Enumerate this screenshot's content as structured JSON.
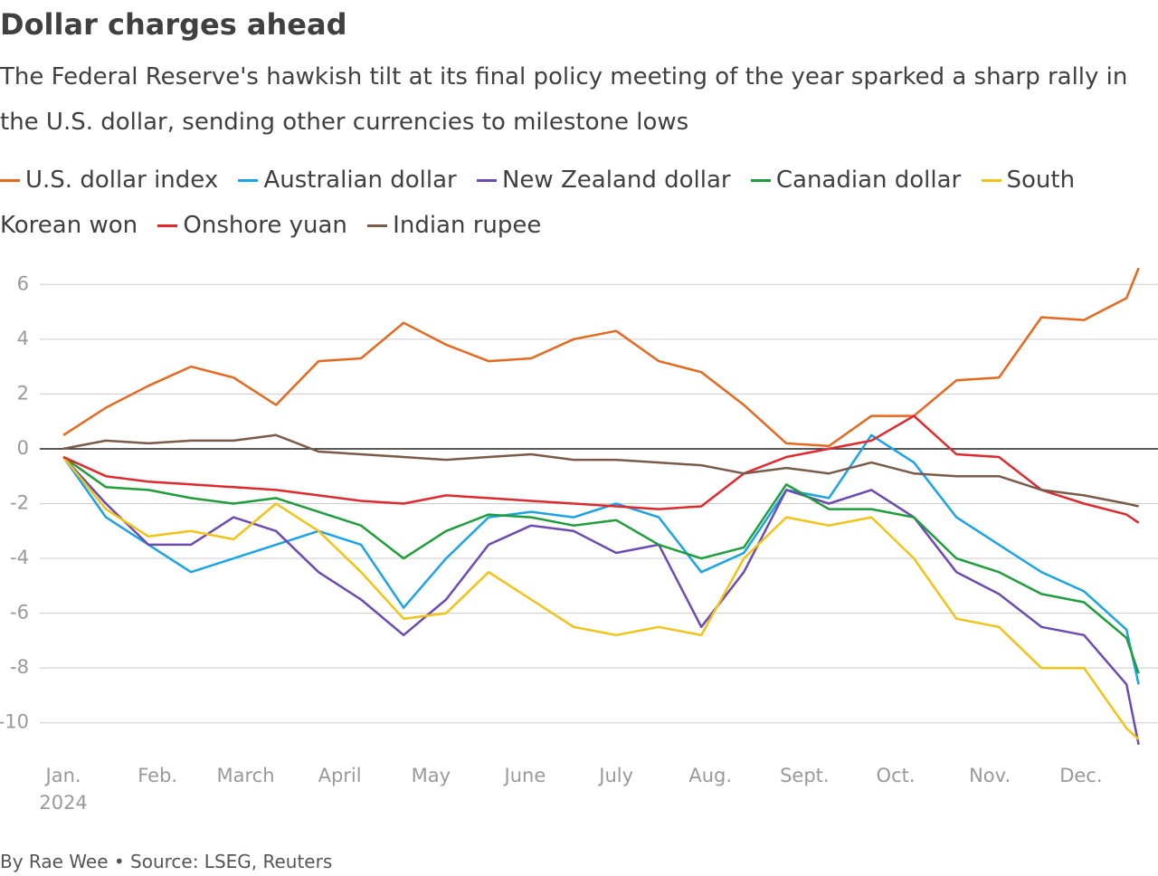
{
  "chart_data": {
    "type": "line",
    "title": "Dollar charges ahead",
    "subtitle": "The Federal Reserve's hawkish tilt at its final policy meeting of the year sparked a sharp rally in the U.S. dollar, sending other currencies to milestone lows",
    "footer": "By Rae Wee • Source: LSEG, Reuters",
    "x_year_label": "2024",
    "x": [
      0,
      14,
      28,
      42,
      56,
      70,
      84,
      98,
      112,
      126,
      140,
      154,
      168,
      182,
      196,
      210,
      224,
      238,
      252,
      266,
      280,
      294,
      308,
      322,
      336,
      350,
      354
    ],
    "xlim": [
      -3,
      355
    ],
    "xticks": [
      {
        "value": 0,
        "label": "Jan."
      },
      {
        "value": 31,
        "label": "Feb."
      },
      {
        "value": 60,
        "label": "March"
      },
      {
        "value": 91,
        "label": "April"
      },
      {
        "value": 121,
        "label": "May"
      },
      {
        "value": 152,
        "label": "June"
      },
      {
        "value": 182,
        "label": "July"
      },
      {
        "value": 213,
        "label": "Aug."
      },
      {
        "value": 244,
        "label": "Sept."
      },
      {
        "value": 274,
        "label": "Oct."
      },
      {
        "value": 305,
        "label": "Nov."
      },
      {
        "value": 335,
        "label": "Dec."
      }
    ],
    "ylim": [
      -11,
      7
    ],
    "yticks": [
      6,
      4,
      2,
      0,
      -2,
      -4,
      -6,
      -8,
      -10
    ],
    "grid": true,
    "series": [
      {
        "name": "U.S. dollar index",
        "color": "#e8671c",
        "values": [
          0.5,
          1.5,
          2.3,
          3.0,
          2.6,
          1.6,
          3.2,
          3.3,
          4.6,
          3.8,
          3.2,
          3.3,
          4.0,
          4.3,
          3.2,
          2.8,
          1.6,
          0.2,
          0.1,
          1.2,
          1.2,
          2.5,
          2.6,
          4.8,
          4.7,
          5.5,
          6.6
        ]
      },
      {
        "name": "Australian dollar",
        "color": "#1aa3e6",
        "values": [
          -0.3,
          -2.5,
          -3.5,
          -4.5,
          -4.0,
          -3.5,
          -3.0,
          -3.5,
          -5.8,
          -4.0,
          -2.5,
          -2.3,
          -2.5,
          -2.0,
          -2.5,
          -4.5,
          -3.8,
          -1.5,
          -1.8,
          0.5,
          -0.5,
          -2.5,
          -3.5,
          -4.5,
          -5.2,
          -6.6,
          -8.6
        ]
      },
      {
        "name": "New Zealand dollar",
        "color": "#6c4ab3",
        "values": [
          -0.3,
          -2.0,
          -3.5,
          -3.5,
          -2.5,
          -3.0,
          -4.5,
          -5.5,
          -6.8,
          -5.5,
          -3.5,
          -2.8,
          -3.0,
          -3.8,
          -3.5,
          -6.5,
          -4.5,
          -1.5,
          -2.0,
          -1.5,
          -2.5,
          -4.5,
          -5.3,
          -6.5,
          -6.8,
          -8.6,
          -10.8
        ]
      },
      {
        "name": "Canadian dollar",
        "color": "#1e9e3a",
        "values": [
          -0.3,
          -1.4,
          -1.5,
          -1.8,
          -2.0,
          -1.8,
          -2.3,
          -2.8,
          -4.0,
          -3.0,
          -2.4,
          -2.5,
          -2.8,
          -2.6,
          -3.5,
          -4.0,
          -3.6,
          -1.3,
          -2.2,
          -2.2,
          -2.5,
          -4.0,
          -4.5,
          -5.3,
          -5.6,
          -6.9,
          -8.2
        ]
      },
      {
        "name": "South Korean won",
        "color": "#f2c215",
        "values": [
          -0.3,
          -2.2,
          -3.2,
          -3.0,
          -3.3,
          -2.0,
          -3.0,
          -4.5,
          -6.2,
          -6.0,
          -4.5,
          -5.5,
          -6.5,
          -6.8,
          -6.5,
          -6.8,
          -4.0,
          -2.5,
          -2.8,
          -2.5,
          -4.0,
          -6.2,
          -6.5,
          -8.0,
          -8.0,
          -10.2,
          -10.6
        ]
      },
      {
        "name": "Onshore yuan",
        "color": "#e0282d",
        "values": [
          -0.3,
          -1.0,
          -1.2,
          -1.3,
          -1.4,
          -1.5,
          -1.7,
          -1.9,
          -2.0,
          -1.7,
          -1.8,
          -1.9,
          -2.0,
          -2.1,
          -2.2,
          -2.1,
          -0.9,
          -0.3,
          0.0,
          0.3,
          1.2,
          -0.2,
          -0.3,
          -1.5,
          -2.0,
          -2.4,
          -2.7
        ]
      },
      {
        "name": "Indian rupee",
        "color": "#7a5a48",
        "values": [
          0,
          0.3,
          0.2,
          0.3,
          0.3,
          0.5,
          -0.1,
          -0.2,
          -0.3,
          -0.4,
          -0.3,
          -0.2,
          -0.4,
          -0.4,
          -0.5,
          -0.6,
          -0.9,
          -0.7,
          -0.9,
          -0.5,
          -0.9,
          -1.0,
          -1.0,
          -1.5,
          -1.7,
          -2.0,
          -2.1
        ]
      }
    ]
  }
}
